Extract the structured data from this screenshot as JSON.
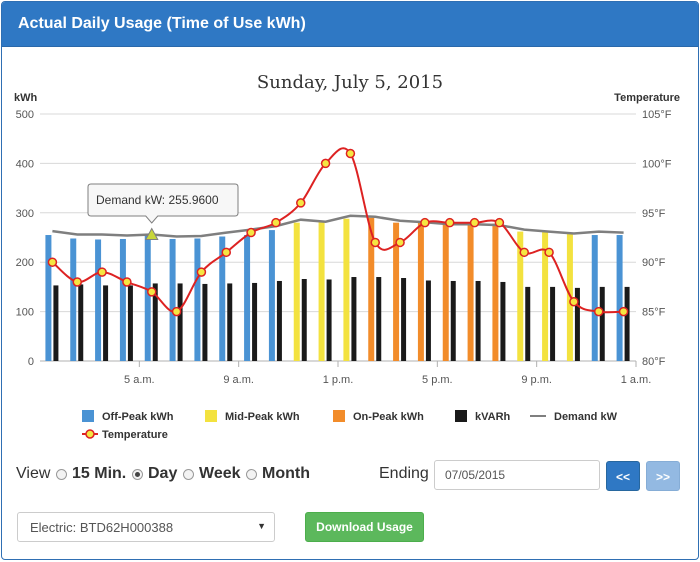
{
  "panel": {
    "title": "Actual Daily Usage (Time of Use kWh)"
  },
  "chart_data": {
    "type": "bar",
    "title": "Sunday, July 5, 2015",
    "ylabel_left": "kWh",
    "ylabel_right": "Temperature",
    "ylim_left": [
      0,
      500
    ],
    "yticks_left": [
      "0",
      "100",
      "200",
      "300",
      "400",
      "500"
    ],
    "ylim_right": [
      80,
      105
    ],
    "yticks_right": [
      "80°F",
      "85°F",
      "90°F",
      "95°F",
      "100°F",
      "105°F"
    ],
    "x_tick_labels": [
      {
        "hour": 4,
        "label": "5 a.m."
      },
      {
        "hour": 8,
        "label": "9 a.m."
      },
      {
        "hour": 12,
        "label": "1 p.m."
      },
      {
        "hour": 16,
        "label": "5 p.m."
      },
      {
        "hour": 20,
        "label": "9 p.m."
      },
      {
        "hour": 24,
        "label": "1 a.m."
      }
    ],
    "categories": [
      "1",
      "2",
      "3",
      "4",
      "5",
      "6",
      "7",
      "8",
      "9",
      "10",
      "11",
      "12",
      "13",
      "14",
      "15",
      "16",
      "17",
      "18",
      "19",
      "20",
      "21",
      "22",
      "23",
      "24"
    ],
    "usage": [
      {
        "period": "off",
        "kwh": 255
      },
      {
        "period": "off",
        "kwh": 248
      },
      {
        "period": "off",
        "kwh": 246
      },
      {
        "period": "off",
        "kwh": 247
      },
      {
        "period": "off",
        "kwh": 255
      },
      {
        "period": "off",
        "kwh": 247
      },
      {
        "period": "off",
        "kwh": 248
      },
      {
        "period": "off",
        "kwh": 252
      },
      {
        "period": "off",
        "kwh": 255
      },
      {
        "period": "off",
        "kwh": 265
      },
      {
        "period": "mid",
        "kwh": 280
      },
      {
        "period": "mid",
        "kwh": 283
      },
      {
        "period": "mid",
        "kwh": 288
      },
      {
        "period": "on",
        "kwh": 290
      },
      {
        "period": "on",
        "kwh": 280
      },
      {
        "period": "on",
        "kwh": 282
      },
      {
        "period": "on",
        "kwh": 278
      },
      {
        "period": "on",
        "kwh": 278
      },
      {
        "period": "on",
        "kwh": 278
      },
      {
        "period": "mid",
        "kwh": 262
      },
      {
        "period": "mid",
        "kwh": 262
      },
      {
        "period": "mid",
        "kwh": 260
      },
      {
        "period": "off",
        "kwh": 255
      },
      {
        "period": "off",
        "kwh": 255
      }
    ],
    "kvarh": [
      153,
      155,
      153,
      153,
      157,
      157,
      156,
      157,
      158,
      162,
      166,
      165,
      170,
      170,
      168,
      163,
      162,
      162,
      160,
      150,
      150,
      148,
      150,
      150
    ],
    "demand_kw": [
      263,
      256,
      256,
      254,
      256,
      252,
      253,
      260,
      266,
      273,
      286,
      282,
      294,
      292,
      284,
      281,
      277,
      277,
      275,
      266,
      262,
      258,
      262,
      260
    ],
    "temperature": [
      90,
      88,
      89,
      88,
      87,
      85,
      89,
      91,
      93,
      94,
      96,
      100,
      101,
      92,
      92,
      94,
      94,
      94,
      94,
      91,
      91,
      86,
      85,
      85
    ],
    "series": [
      {
        "name": "Off-Peak kWh",
        "color": "#4a93d4"
      },
      {
        "name": "Mid-Peak kWh",
        "color": "#f3e23f"
      },
      {
        "name": "On-Peak kWh",
        "color": "#f28c2a"
      },
      {
        "name": "kVARh",
        "color": "#1a1a1a"
      },
      {
        "name": "Demand kW",
        "color": "#7f7f7f"
      },
      {
        "name": "Temperature",
        "color": "#dd2222",
        "marker_fill": "#f5e642"
      }
    ],
    "tooltip": {
      "text": "Demand kW: 255.9600",
      "index": 4
    }
  },
  "controls": {
    "view_label": "View",
    "options": [
      {
        "label": "15 Min.",
        "checked": false
      },
      {
        "label": "Day",
        "checked": true
      },
      {
        "label": "Week",
        "checked": false
      },
      {
        "label": "Month",
        "checked": false
      }
    ],
    "ending_label": "Ending",
    "ending_date": "07/05/2015",
    "prev_label": "<<",
    "next_label": ">>"
  },
  "meter_select": {
    "value": "Electric: BTD62H000388"
  },
  "download_label": "Download Usage"
}
